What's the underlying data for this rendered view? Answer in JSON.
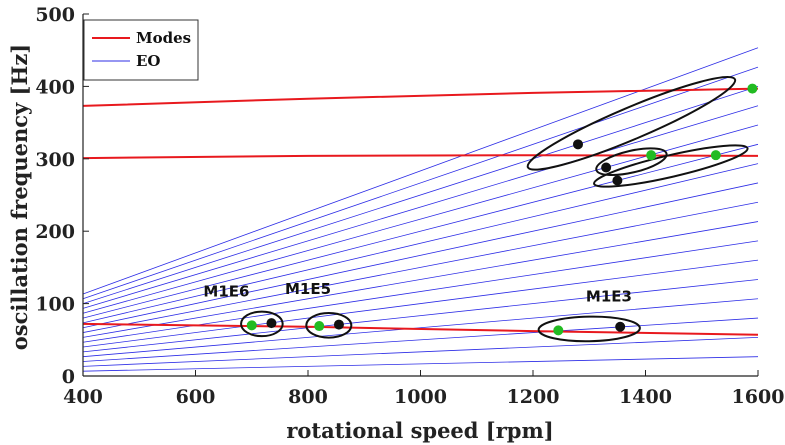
{
  "chart_data": {
    "type": "line",
    "xlabel": "rotational speed [rpm]",
    "ylabel": "oscillation frequency [Hz]",
    "xlim": [
      400,
      1600
    ],
    "ylim": [
      0,
      500
    ],
    "xticks": [
      400,
      600,
      800,
      1000,
      1200,
      1400,
      1600
    ],
    "yticks": [
      0,
      100,
      200,
      300,
      400,
      500
    ],
    "grid": false,
    "legend_position": "top-left",
    "legend": [
      {
        "name": "Modes",
        "color": "#e8191e"
      },
      {
        "name": "EO",
        "color": "#2d2de6"
      }
    ],
    "series": [
      {
        "name": "Modes",
        "color": "#e8191e",
        "x": [
          400,
          800,
          1200,
          1600
        ],
        "y": [
          72,
          68,
          62,
          57
        ]
      },
      {
        "name": "Modes",
        "color": "#e8191e",
        "x": [
          400,
          800,
          1200,
          1600
        ],
        "y": [
          301,
          304,
          305,
          304
        ]
      },
      {
        "name": "Modes",
        "color": "#e8191e",
        "x": [
          400,
          800,
          1200,
          1600
        ],
        "y": [
          373,
          383,
          391,
          397
        ]
      },
      {
        "name": "EO",
        "color": "#2d2de6",
        "eo_slopes_hz_per_rpm": [
          0.01667,
          0.03333,
          0.05,
          0.06667,
          0.08333,
          0.1,
          0.11667,
          0.13333,
          0.15,
          0.16667,
          0.18333,
          0.2,
          0.21667,
          0.23333,
          0.25,
          0.26667,
          0.28333
        ]
      }
    ],
    "points": {
      "green": {
        "color": "#22bb22",
        "x": [
          700,
          820,
          1245,
          1410,
          1525,
          1590
        ],
        "y": [
          70,
          69,
          63,
          305,
          305,
          397
        ]
      },
      "black": {
        "color": "#111111",
        "x": [
          735,
          855,
          1355,
          1280,
          1330,
          1350
        ],
        "y": [
          73,
          71,
          68,
          320,
          288,
          270
        ]
      }
    },
    "annotations": [
      {
        "text": "M1E6",
        "x": 655,
        "y": 110
      },
      {
        "text": "M1E5",
        "x": 800,
        "y": 113
      },
      {
        "text": "M1E3",
        "x": 1335,
        "y": 103
      }
    ],
    "ellipses": [
      {
        "cx": 718,
        "cy": 72,
        "rx_rpm": 37,
        "ry_hz": 17,
        "angle_deg": 0
      },
      {
        "cx": 837,
        "cy": 70,
        "rx_rpm": 40,
        "ry_hz": 17,
        "angle_deg": 0
      },
      {
        "cx": 1300,
        "cy": 65,
        "rx_rpm": 90,
        "ry_hz": 17,
        "angle_deg": -1
      },
      {
        "cx": 1375,
        "cy": 349,
        "rx_rpm": 200,
        "ry_hz": 22,
        "angle_deg": -23
      },
      {
        "cx": 1375,
        "cy": 296,
        "rx_rpm": 64,
        "ry_hz": 15,
        "angle_deg": -13
      },
      {
        "cx": 1445,
        "cy": 290,
        "rx_rpm": 140,
        "ry_hz": 15,
        "angle_deg": -13
      }
    ]
  }
}
